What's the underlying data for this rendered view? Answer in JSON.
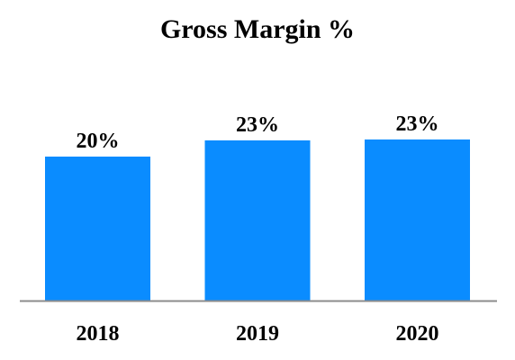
{
  "chart_data": {
    "type": "bar",
    "title": "Gross Margin %",
    "categories": [
      "2018",
      "2019",
      "2020"
    ],
    "values": [
      20,
      23,
      23
    ],
    "data_labels": [
      "20%",
      "23%",
      "23%"
    ],
    "ylabel": "",
    "xlabel": "",
    "ylim": [
      0,
      30
    ],
    "grid": false,
    "legend": "none",
    "colors": {
      "bar": "#0a8cff",
      "axis": "#8c8c8c",
      "text": "#000000"
    }
  }
}
